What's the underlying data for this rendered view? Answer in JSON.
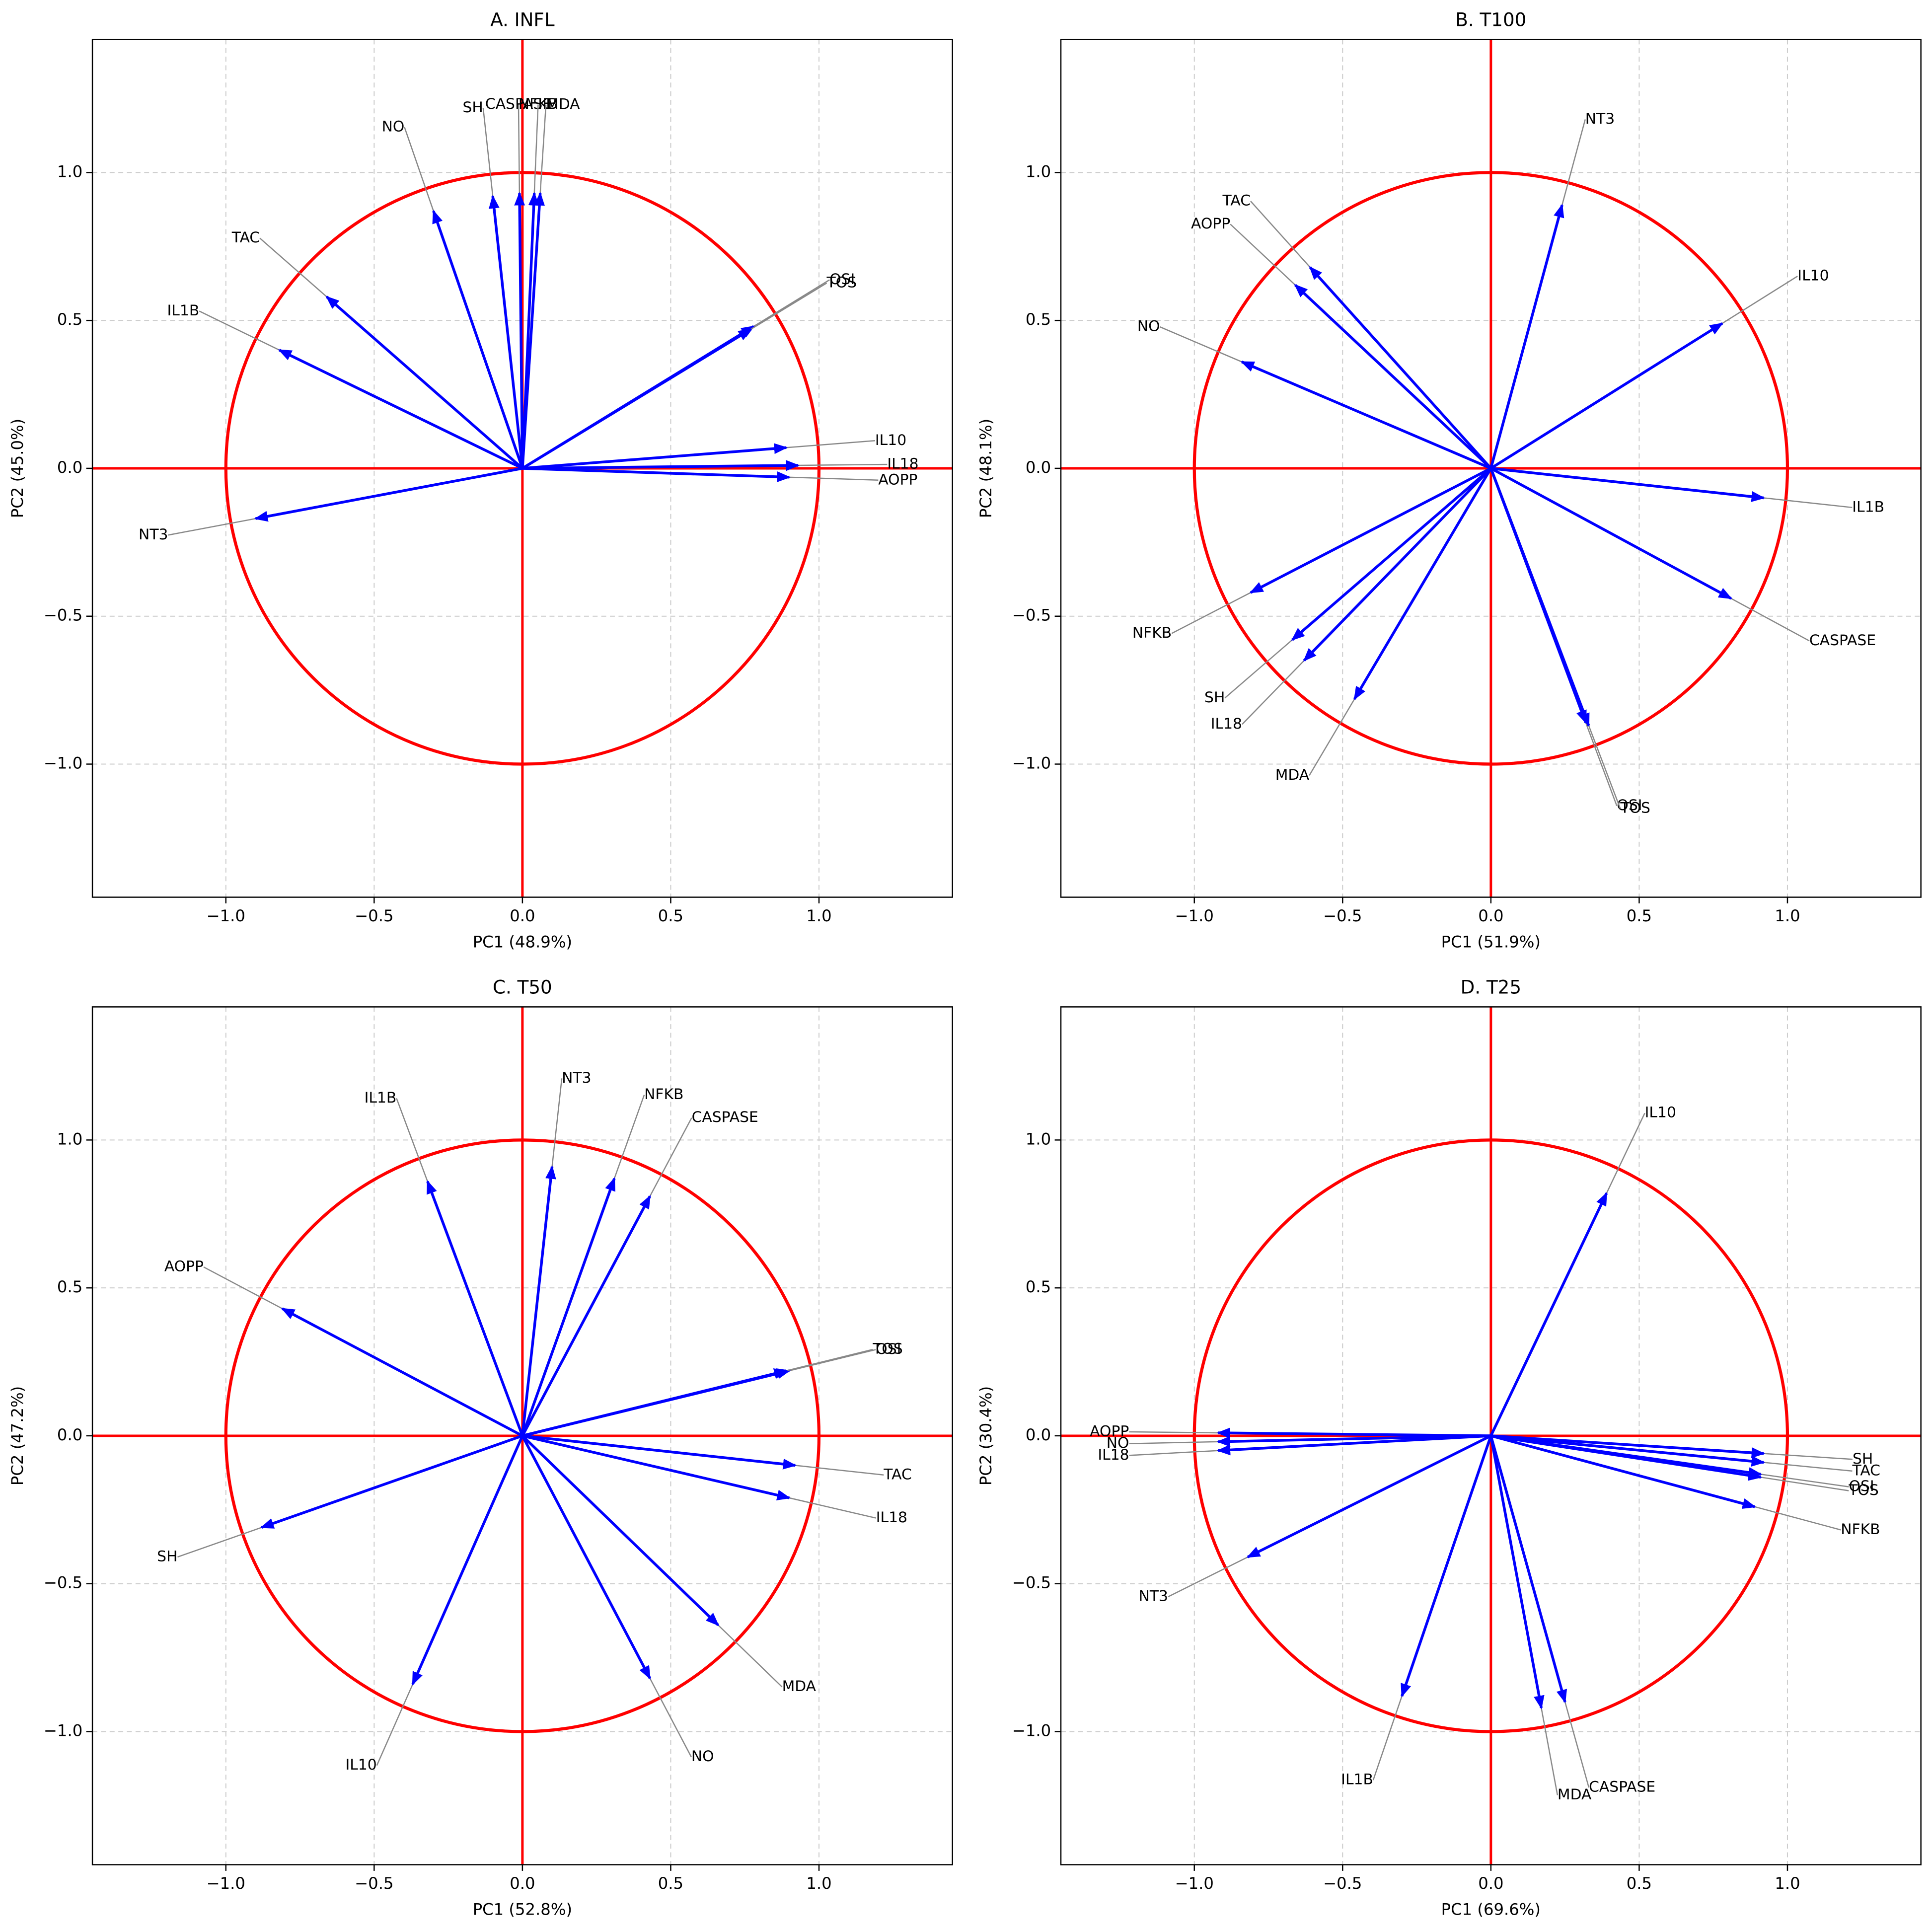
{
  "chart_data": [
    {
      "type": "biplot",
      "title": "A. INFL",
      "x_label": "PC1 (48.9%)",
      "y_label": "PC2 (45.0%)",
      "color": "#0000ff",
      "circle_color": "#ff0000",
      "labels": [
        "NO",
        "SH",
        "CASPASE",
        "NFKB",
        "MDA",
        "TAC",
        "IL1B",
        "OSI",
        "TOS",
        "IL10",
        "IL18",
        "AOPP",
        "NT3"
      ],
      "x": [
        -0.3,
        -0.1,
        -0.01,
        0.04,
        0.06,
        -0.66,
        -0.82,
        0.78,
        0.77,
        0.89,
        0.93,
        0.9,
        -0.9
      ],
      "y": [
        0.87,
        0.92,
        0.93,
        0.93,
        0.93,
        0.58,
        0.4,
        0.48,
        0.47,
        0.07,
        0.01,
        -0.03,
        -0.17
      ],
      "xlim": [
        -1.45,
        1.45
      ],
      "ylim": [
        -1.45,
        1.45
      ],
      "grid": true,
      "xticks": [
        {
          "value": -1,
          "label": "−1.0"
        },
        {
          "value": -0.5,
          "label": "−0.5"
        },
        {
          "value": 0,
          "label": "0.0"
        },
        {
          "value": 0.5,
          "label": "0.5"
        },
        {
          "value": 1,
          "label": "1.0"
        }
      ],
      "yticks": [
        {
          "value": -1,
          "label": "−1.0"
        },
        {
          "value": -0.5,
          "label": "−0.5"
        },
        {
          "value": 0,
          "label": "0.0"
        },
        {
          "value": 0.5,
          "label": "0.5"
        },
        {
          "value": 1,
          "label": "1.0"
        }
      ]
    },
    {
      "type": "biplot",
      "title": "B. T100",
      "x_label": "PC1 (51.9%)",
      "y_label": "PC2 (48.1%)",
      "color": "#0000ff",
      "circle_color": "#ff0000",
      "labels": [
        "NT3",
        "IL10",
        "TAC",
        "AOPP",
        "NO",
        "IL1B",
        "CASPASE",
        "NFKB",
        "SH",
        "IL18",
        "MDA",
        "OSI",
        "TOS"
      ],
      "x": [
        0.24,
        0.78,
        -0.61,
        -0.66,
        -0.84,
        0.92,
        0.81,
        -0.81,
        -0.67,
        -0.63,
        -0.46,
        0.32,
        0.33
      ],
      "y": [
        0.89,
        0.49,
        0.68,
        0.62,
        0.36,
        -0.1,
        -0.44,
        -0.42,
        -0.58,
        -0.65,
        -0.78,
        -0.86,
        -0.87
      ],
      "xlim": [
        -1.45,
        1.45
      ],
      "ylim": [
        -1.45,
        1.45
      ],
      "grid": true,
      "xticks": [
        {
          "value": -1,
          "label": "−1.0"
        },
        {
          "value": -0.5,
          "label": "−0.5"
        },
        {
          "value": 0,
          "label": "0.0"
        },
        {
          "value": 0.5,
          "label": "0.5"
        },
        {
          "value": 1,
          "label": "1.0"
        }
      ],
      "yticks": [
        {
          "value": -1,
          "label": "−1.0"
        },
        {
          "value": -0.5,
          "label": "−0.5"
        },
        {
          "value": 0,
          "label": "0.0"
        },
        {
          "value": 0.5,
          "label": "0.5"
        },
        {
          "value": 1,
          "label": "1.0"
        }
      ]
    },
    {
      "type": "biplot",
      "title": "C. T50",
      "x_label": "PC1 (52.8%)",
      "y_label": "PC2 (47.2%)",
      "color": "#0000ff",
      "circle_color": "#ff0000",
      "labels": [
        "NT3",
        "NFKB",
        "CASPASE",
        "IL1B",
        "AOPP",
        "OSI",
        "TOS",
        "TAC",
        "IL18",
        "SH",
        "MDA",
        "NO",
        "IL10"
      ],
      "x": [
        0.1,
        0.31,
        0.43,
        -0.32,
        -0.81,
        0.9,
        0.89,
        0.92,
        0.9,
        -0.88,
        0.66,
        0.43,
        -0.37
      ],
      "y": [
        0.91,
        0.87,
        0.81,
        0.86,
        0.43,
        0.22,
        0.22,
        -0.1,
        -0.21,
        -0.31,
        -0.64,
        -0.82,
        -0.84
      ],
      "xlim": [
        -1.45,
        1.45
      ],
      "ylim": [
        -1.45,
        1.45
      ],
      "grid": true,
      "xticks": [
        {
          "value": -1,
          "label": "−1.0"
        },
        {
          "value": -0.5,
          "label": "−0.5"
        },
        {
          "value": 0,
          "label": "0.0"
        },
        {
          "value": 0.5,
          "label": "0.5"
        },
        {
          "value": 1,
          "label": "1.0"
        }
      ],
      "yticks": [
        {
          "value": -1,
          "label": "−1.0"
        },
        {
          "value": -0.5,
          "label": "−0.5"
        },
        {
          "value": 0,
          "label": "0.0"
        },
        {
          "value": 0.5,
          "label": "0.5"
        },
        {
          "value": 1,
          "label": "1.0"
        }
      ]
    },
    {
      "type": "biplot",
      "title": "D. T25",
      "x_label": "PC1 (69.6%)",
      "y_label": "PC2 (30.4%)",
      "color": "#0000ff",
      "circle_color": "#ff0000",
      "labels": [
        "IL10",
        "AOPP",
        "NO",
        "IL18",
        "SH",
        "TAC",
        "OSI",
        "TOS",
        "NFKB",
        "NT3",
        "IL1B",
        "MDA",
        "CASPASE"
      ],
      "x": [
        0.39,
        -0.92,
        -0.92,
        -0.92,
        0.92,
        0.92,
        0.91,
        0.91,
        0.89,
        -0.82,
        -0.3,
        0.17,
        0.25
      ],
      "y": [
        0.82,
        0.01,
        -0.02,
        -0.05,
        -0.06,
        -0.09,
        -0.13,
        -0.14,
        -0.24,
        -0.41,
        -0.88,
        -0.92,
        -0.9
      ],
      "xlim": [
        -1.45,
        1.45
      ],
      "ylim": [
        -1.45,
        1.45
      ],
      "grid": true,
      "xticks": [
        {
          "value": -1,
          "label": "−1.0"
        },
        {
          "value": -0.5,
          "label": "−0.5"
        },
        {
          "value": 0,
          "label": "0.0"
        },
        {
          "value": 0.5,
          "label": "0.5"
        },
        {
          "value": 1,
          "label": "1.0"
        }
      ],
      "yticks": [
        {
          "value": -1,
          "label": "−1.0"
        },
        {
          "value": -0.5,
          "label": "−0.5"
        },
        {
          "value": 0,
          "label": "0.0"
        },
        {
          "value": 0.5,
          "label": "0.5"
        },
        {
          "value": 1,
          "label": "1.0"
        }
      ]
    }
  ]
}
